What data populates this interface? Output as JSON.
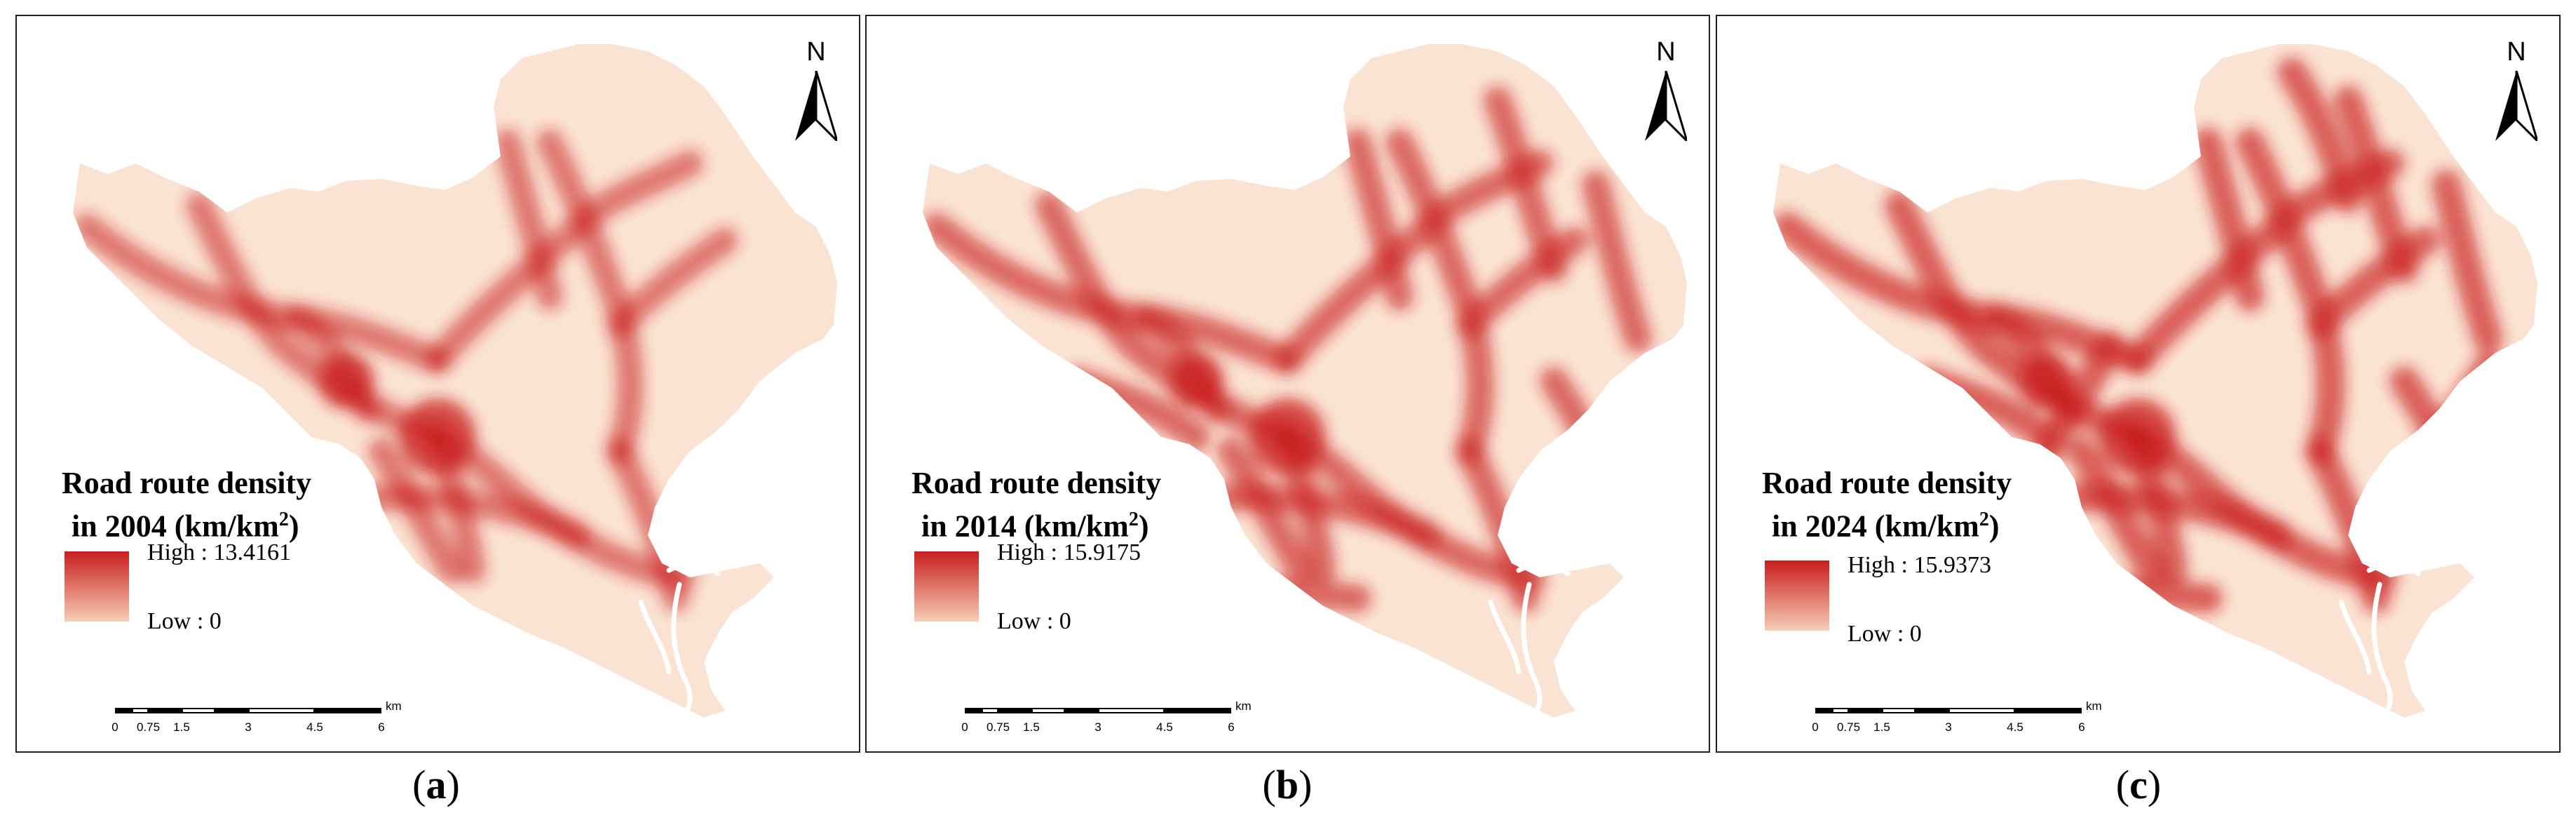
{
  "panels": [
    {
      "id": "a",
      "legend_title_line1": "Road route density",
      "legend_title_line2_prefix": "in 2004 (km/km",
      "legend_title_sup": "2",
      "legend_title_suffix": ")",
      "high_label": "High : 13.4161",
      "low_label": "Low : 0",
      "caption_open": "(",
      "caption_letter": "a",
      "caption_close": ")"
    },
    {
      "id": "b",
      "legend_title_line1": "Road route density",
      "legend_title_line2_prefix": "in 2014 (km/km",
      "legend_title_sup": "2",
      "legend_title_suffix": ")",
      "high_label": "High : 15.9175",
      "low_label": "Low : 0",
      "caption_open": "(",
      "caption_letter": "b",
      "caption_close": ")"
    },
    {
      "id": "c",
      "legend_title_line1": "Road route density",
      "legend_title_line2_prefix": "in 2024 (km/km",
      "legend_title_sup": "2",
      "legend_title_suffix": ")",
      "high_label": "High : 15.9373",
      "low_label": "Low : 0",
      "caption_open": "(",
      "caption_letter": "c",
      "caption_close": ")"
    }
  ],
  "north_arrow": {
    "label": "N"
  },
  "scale_bar": {
    "ticks": [
      "0",
      "0.75",
      "1.5",
      "3",
      "4.5",
      "6"
    ],
    "unit": "km"
  },
  "colors": {
    "high": "#c81d1d",
    "low": "#f6cdb6",
    "background": "#fbe3d3",
    "river": "#ffffff"
  },
  "icons": {
    "north": "north-arrow-icon"
  }
}
